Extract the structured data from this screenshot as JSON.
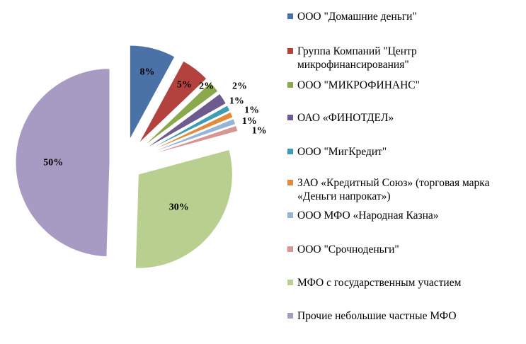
{
  "chart_data": {
    "type": "pie",
    "title": "",
    "series": [
      {
        "name": "ООО \"Домашние деньги\"",
        "value": 8,
        "label": "8%",
        "color": "#4a72a6"
      },
      {
        "name": "Группа Компаний  \"Центр микрофинансирования\"",
        "value": 5,
        "label": "5%",
        "color": "#b3423f"
      },
      {
        "name": "ООО \"МИКРОФИНАНС\"",
        "value": 2,
        "label": "2%",
        "color": "#8aa84c"
      },
      {
        "name": "ОАО «ФИНОТДЕЛ»",
        "value": 2,
        "label": "2%",
        "color": "#6d5a8e"
      },
      {
        "name": "ООО \"МигКредит\"",
        "value": 1,
        "label": "1%",
        "color": "#3e9db3"
      },
      {
        "name": "ЗАО «Кредитный Союз» (торговая марка «Деньги напрокат»)",
        "value": 1,
        "label": "1%",
        "color": "#e48b3a"
      },
      {
        "name": "ООО МФО «Народная Казна»",
        "value": 1,
        "label": "1%",
        "color": "#98b3d9"
      },
      {
        "name": "ООО \"Срочноденьги\"",
        "value": 1,
        "label": "1%",
        "color": "#d99594"
      },
      {
        "name": "МФО с государственным участием",
        "value": 30,
        "label": "30%",
        "color": "#b9cf8f"
      },
      {
        "name": "Прочие небольшие частные МФО",
        "value": 50,
        "label": "50%",
        "color": "#a89bc3"
      }
    ],
    "legend_placement": "right",
    "exploded": true
  }
}
